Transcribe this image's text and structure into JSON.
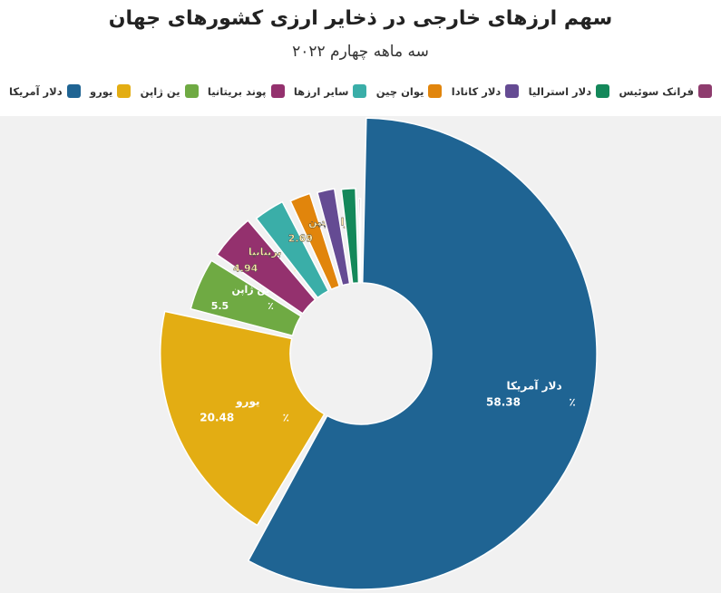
{
  "title": "سهم ارزهای خارجی در ذخایر ارزی کشورهای جهان",
  "subtitle": "سه ماهه چهارم ۲۰۲۲",
  "chart_data": {
    "type": "pie",
    "variant": "donut-variable-radius",
    "unit_symbol": "٪",
    "series": [
      {
        "name": "دلار آمریکا",
        "value": 58.38,
        "color": "#1f6493",
        "labeled": true
      },
      {
        "name": "یورو",
        "value": 20.48,
        "color": "#e3ad13",
        "labeled": true
      },
      {
        "name": "ین ژاپن",
        "value": 5.5,
        "color": "#6faa43",
        "labeled": true
      },
      {
        "name": "پوند بریتانیا",
        "value": 4.94,
        "color": "#94316e",
        "labeled": true
      },
      {
        "name": "سایر ارزها",
        "value": 3.6,
        "color": "#3aaea8",
        "labeled": false
      },
      {
        "name": "یوان چین",
        "value": 2.69,
        "color": "#e1850c",
        "labeled": true
      },
      {
        "name": "دلار کانادا",
        "value": 2.38,
        "color": "#654b93",
        "labeled": false
      },
      {
        "name": "دلار استرالیا",
        "value": 1.96,
        "color": "#14885a",
        "labeled": false
      },
      {
        "name": "فرانک سوئیس",
        "value": 0.23,
        "color": "#8e3c6e",
        "labeled": false
      }
    ],
    "legend_position": "top",
    "grid": false
  }
}
